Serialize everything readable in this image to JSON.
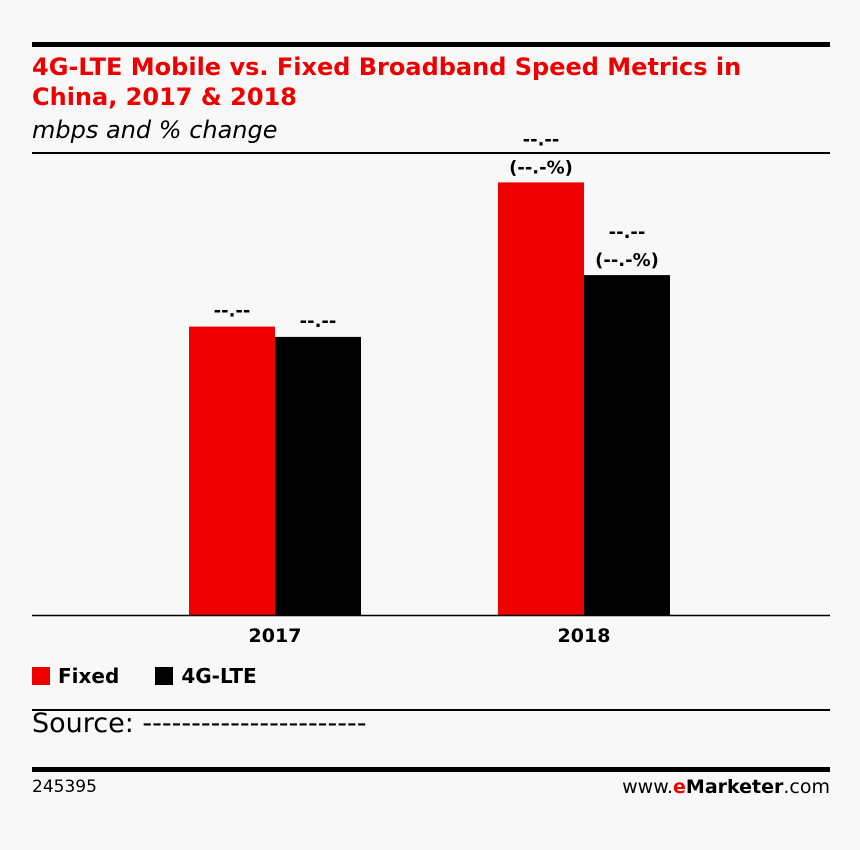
{
  "header": {
    "title": "4G-LTE Mobile vs. Fixed Broadband Speed Metrics in China, 2017 & 2018",
    "subtitle": "mbps and % change"
  },
  "chart_data": {
    "type": "bar",
    "title": "4G-LTE Mobile vs. Fixed Broadband Speed Metrics in China, 2017 & 2018",
    "subtitle": "mbps and % change",
    "xlabel": "",
    "ylabel": "",
    "grid": false,
    "legend_position": "bottom-left",
    "categories": [
      "2017",
      "2018"
    ],
    "ylim": [
      0,
      100
    ],
    "series": [
      {
        "name": "Fixed",
        "color": "#ee0000",
        "values": [
          56,
          84
        ],
        "value_labels": [
          "--.--",
          "--.--"
        ],
        "change_labels": [
          "",
          "(--.-%)"
        ]
      },
      {
        "name": "4G-LTE",
        "color": "#000000",
        "values": [
          54,
          66
        ],
        "value_labels": [
          "--.--",
          "--.--"
        ],
        "change_labels": [
          "",
          "(--.-%)"
        ]
      }
    ]
  },
  "footer": {
    "source": "Source: -----------------------",
    "chart_id": "245395",
    "brand_prefix": "www.",
    "brand_e": "e",
    "brand_name": "Marketer",
    "brand_suffix": ".com"
  }
}
